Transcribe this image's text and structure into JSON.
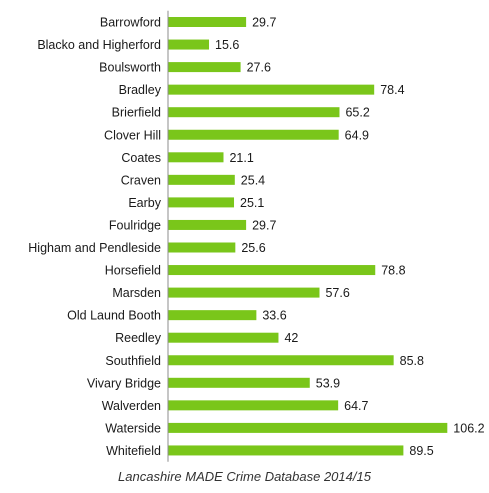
{
  "chart_data": {
    "type": "bar",
    "orientation": "horizontal",
    "categories": [
      "Barrowford",
      "Blacko and Higherford",
      "Boulsworth",
      "Bradley",
      "Brierfield",
      "Clover Hill",
      "Coates",
      "Craven",
      "Earby",
      "Foulridge",
      "Higham and Pendleside",
      "Horsefield",
      "Marsden",
      "Old Laund Booth",
      "Reedley",
      "Southfield",
      "Vivary Bridge",
      "Walverden",
      "Waterside",
      "Whitefield"
    ],
    "values": [
      29.7,
      15.6,
      27.6,
      78.4,
      65.2,
      64.9,
      21.1,
      25.4,
      25.1,
      29.7,
      25.6,
      78.8,
      57.6,
      33.6,
      42,
      85.8,
      53.9,
      64.7,
      106.2,
      89.5
    ],
    "value_labels": [
      "29.7",
      "15.6",
      "27.6",
      "78.4",
      "65.2",
      "64.9",
      "21.1",
      "25.4",
      "25.1",
      "29.7",
      "25.6",
      "78.8",
      "57.6",
      "33.6",
      "42",
      "85.8",
      "53.9",
      "64.7",
      "106.2",
      "89.5"
    ],
    "xlim": [
      0,
      120
    ],
    "grid": false,
    "legend": "none",
    "bar_color": "#7ac61a",
    "caption": "Lancashire MADE Crime Database 2014/15"
  }
}
